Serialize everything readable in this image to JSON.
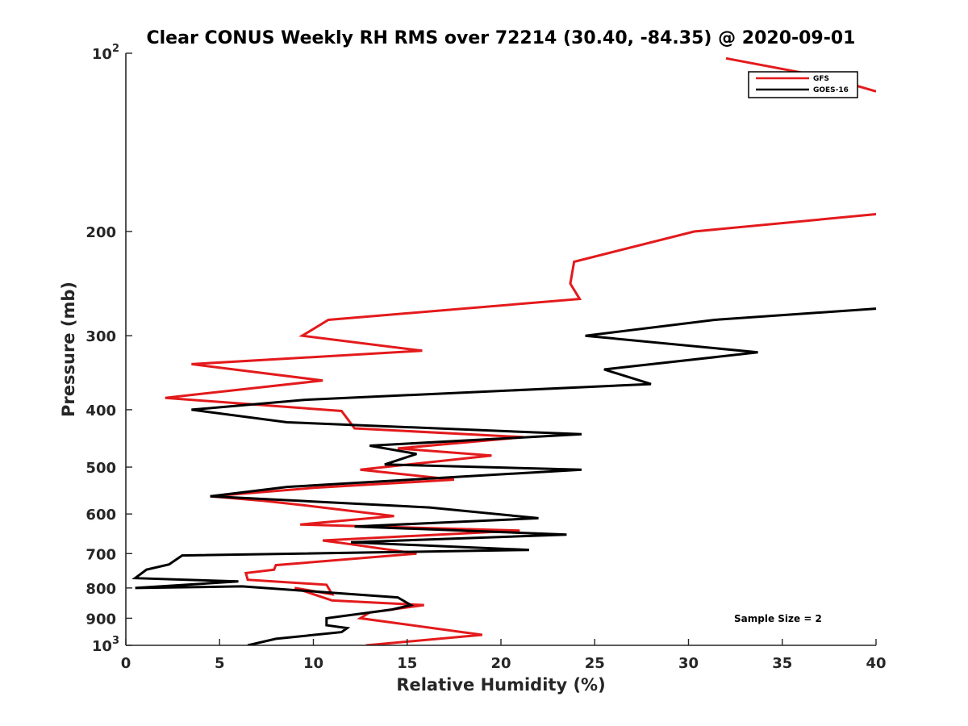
{
  "chart_data": {
    "type": "line",
    "title": "Clear CONUS Weekly RH RMS over 72214 (30.40, -84.35) @ 2020-09-01",
    "xlabel": "Relative Humidity (%)",
    "ylabel": "Pressure (mb)",
    "xlim": [
      0,
      40
    ],
    "ylim": [
      100,
      1000
    ],
    "yscale": "log",
    "y_reversed": true,
    "grid": false,
    "legend_position": "top-right",
    "x_ticks": [
      0,
      5,
      10,
      15,
      20,
      25,
      30,
      35,
      40
    ],
    "x_tick_labels": [
      "0",
      "5",
      "10",
      "15",
      "20",
      "25",
      "30",
      "35",
      "40"
    ],
    "y_ticks": [
      {
        "value": 100,
        "label": "10",
        "sup": "2"
      },
      {
        "value": 200,
        "label": "200",
        "sup": ""
      },
      {
        "value": 300,
        "label": "300",
        "sup": ""
      },
      {
        "value": 400,
        "label": "400",
        "sup": ""
      },
      {
        "value": 500,
        "label": "500",
        "sup": ""
      },
      {
        "value": 600,
        "label": "600",
        "sup": ""
      },
      {
        "value": 700,
        "label": "700",
        "sup": ""
      },
      {
        "value": 800,
        "label": "800",
        "sup": ""
      },
      {
        "value": 900,
        "label": "900",
        "sup": ""
      },
      {
        "value": 1000,
        "label": "10",
        "sup": "3"
      }
    ],
    "annotation": "Sample Size = 2",
    "series": [
      {
        "name": "GFS",
        "color": "#e31a1c",
        "x": [
          12.8,
          19.0,
          12.5,
          13.0,
          15.9,
          11.0,
          9.0,
          11.0,
          10.7,
          6.5,
          6.4,
          7.9,
          8.0,
          15.5,
          12.0,
          10.5,
          21.0,
          9.3,
          14.3,
          9.5,
          7.3,
          4.5,
          10.0,
          17.5,
          12.5,
          19.5,
          14.5,
          21.2,
          12.2,
          11.5,
          2.1,
          10.5,
          3.5,
          15.8,
          9.4,
          10.8,
          24.2,
          23.7,
          23.9,
          30.3,
          40.0,
          null,
          32.0,
          37.5,
          40.0
        ],
        "y": [
          1000,
          960,
          900,
          880,
          855,
          840,
          800,
          820,
          790,
          775,
          755,
          745,
          732,
          700,
          675,
          665,
          640,
          625,
          605,
          580,
          570,
          560,
          542,
          525,
          505,
          478,
          465,
          445,
          430,
          402,
          382,
          357,
          335,
          318,
          300,
          282,
          260,
          245,
          225,
          200,
          187,
          null,
          102,
          110,
          116
        ]
      },
      {
        "name": "GOES-16",
        "color": "#000000",
        "x": [
          6.5,
          8.0,
          11.5,
          11.8,
          10.7,
          10.7,
          14.2,
          15.2,
          14.5,
          6.2,
          0.5,
          6.0,
          0.5,
          1.1,
          2.3,
          3.0,
          21.5,
          12.0,
          23.5,
          12.2,
          22.0,
          16.2,
          4.5,
          8.6,
          24.3,
          13.8,
          15.5,
          13.0,
          24.3,
          8.6,
          3.5,
          9.5,
          28.0,
          25.5,
          33.7,
          24.5,
          31.4,
          40.0
        ],
        "y": [
          1000,
          975,
          950,
          935,
          925,
          900,
          870,
          855,
          830,
          795,
          800,
          780,
          770,
          745,
          730,
          705,
          690,
          670,
          650,
          630,
          610,
          585,
          560,
          540,
          505,
          495,
          475,
          460,
          440,
          420,
          400,
          385,
          362,
          342,
          320,
          300,
          282,
          270
        ]
      }
    ]
  }
}
